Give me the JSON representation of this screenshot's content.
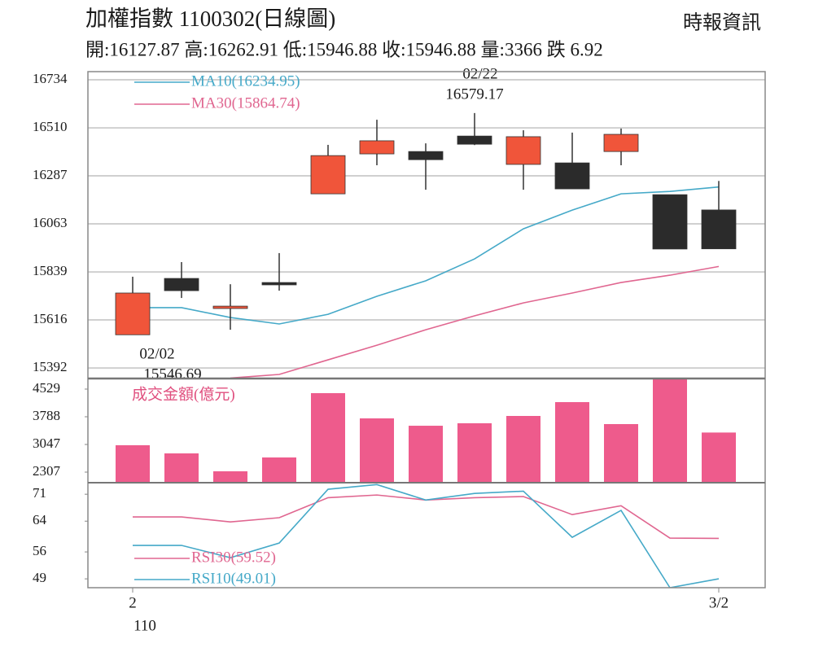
{
  "title": "加權指數 1100302(日線圖)",
  "source": "時報資訊",
  "summary": "開:16127.87 高:16262.91 低:15946.88 收:15946.88 量:3366 跌 6.92",
  "chart_data": [
    {
      "type": "candlestick",
      "open": [
        15546.69,
        15809,
        15669,
        15790,
        16203,
        16389,
        16400,
        16472,
        16340,
        16347,
        16400,
        16199,
        16127.87
      ],
      "high": [
        15817,
        15885,
        15782,
        15927,
        16431,
        16548,
        16438,
        16579.17,
        16499,
        16488,
        16507,
        16199,
        16262.91
      ],
      "low": [
        15546.69,
        15718,
        15570,
        15752,
        16203,
        16336,
        16222,
        16430,
        16222,
        16226,
        16336,
        15946,
        15946.88
      ],
      "close": [
        15741,
        15752,
        15680,
        15779,
        16381,
        16450,
        16362,
        16434,
        16469,
        16226,
        16480,
        15946,
        15946.88
      ],
      "up_color": "#f0553a",
      "down_color": "#2b2b2b",
      "ylim": [
        15343,
        16772
      ],
      "yticks": [
        15392,
        15616,
        15839,
        16063,
        16287,
        16510,
        16734
      ],
      "grid": true,
      "series": [
        {
          "name": "MA10(16234.95)",
          "color": "#45a9c8",
          "values": [
            15673,
            15673,
            15627,
            15597,
            15642,
            15726,
            15798,
            15900,
            16040,
            16127,
            16203,
            16214,
            16234.95
          ]
        },
        {
          "name": "MA30(15864.74)",
          "color": "#e06690",
          "values": [
            null,
            null,
            15345,
            15362,
            15430,
            15498,
            15570,
            15635,
            15695,
            15741,
            15790,
            15824,
            15864.74
          ]
        }
      ],
      "annotations": [
        {
          "lines": [
            "02/22",
            "16579.17"
          ]
        },
        {
          "lines": [
            "02/02",
            "15546.69"
          ]
        }
      ]
    },
    {
      "type": "bar",
      "label": "成交金額(億元)",
      "color": "#ee5b8c",
      "values": [
        3026,
        2808,
        2329,
        2699,
        4420,
        3745,
        3548,
        3614,
        3810,
        4180,
        3592,
        4812,
        3366
      ],
      "ylim": [
        2024,
        4812
      ],
      "yticks": [
        2307,
        3047,
        3788,
        4529
      ],
      "grid": false
    },
    {
      "type": "line",
      "categories": [
        "2",
        null,
        null,
        null,
        null,
        null,
        null,
        null,
        null,
        null,
        null,
        null,
        "3/2"
      ],
      "x_sublabel": "110",
      "ylim": [
        46.7,
        74
      ],
      "yticks": [
        49,
        56,
        64,
        71
      ],
      "grid": false,
      "series": [
        {
          "name": "RSI30(59.52)",
          "color": "#e06690",
          "values": [
            65.1,
            65.1,
            63.8,
            64.9,
            70.1,
            70.8,
            69.5,
            70.1,
            70.4,
            65.7,
            68.0,
            59.6,
            59.52
          ]
        },
        {
          "name": "RSI10(49.01)",
          "color": "#45a9c8",
          "values": [
            57.7,
            57.7,
            54.5,
            58.3,
            72.3,
            73.5,
            69.5,
            71.2,
            71.8,
            59.8,
            66.8,
            46.7,
            49.01
          ]
        }
      ]
    }
  ]
}
